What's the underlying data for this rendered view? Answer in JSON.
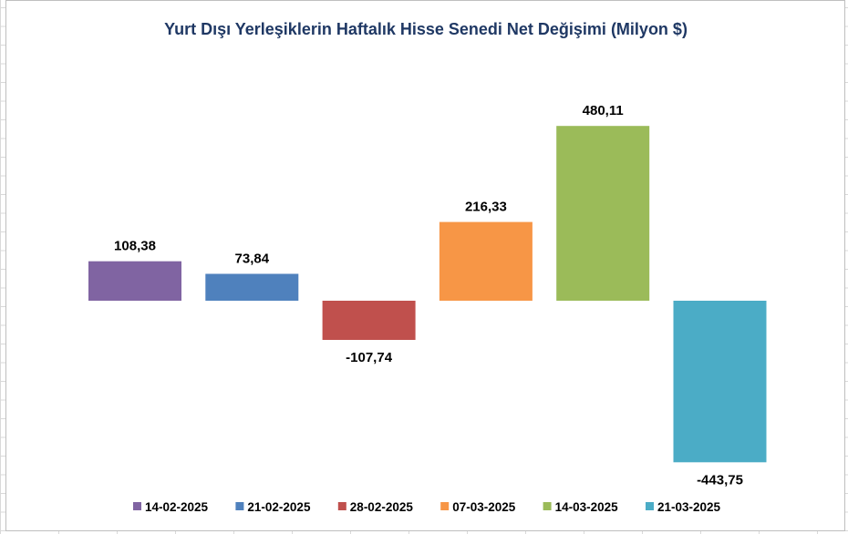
{
  "chart_data": {
    "type": "bar",
    "title": "Yurt Dışı Yerleşiklerin Haftalık Hisse Senedi Net Değişimi (Milyon $)",
    "xlabel": "",
    "ylabel": "",
    "ylim": [
      -470,
      560
    ],
    "grid": false,
    "legend_position": "bottom",
    "series": [
      {
        "name": "14-02-2025",
        "value": 108.38,
        "label": "108,38",
        "color": "#8064a2"
      },
      {
        "name": "21-02-2025",
        "value": 73.84,
        "label": "73,84",
        "color": "#4f81bd"
      },
      {
        "name": "28-02-2025",
        "value": -107.74,
        "label": "-107,74",
        "color": "#c0504d"
      },
      {
        "name": "07-03-2025",
        "value": 216.33,
        "label": "216,33",
        "color": "#f79646"
      },
      {
        "name": "14-03-2025",
        "value": 480.11,
        "label": "480,11",
        "color": "#9bbb59"
      },
      {
        "name": "21-03-2025",
        "value": -443.75,
        "label": "-443,75",
        "color": "#4bacc6"
      }
    ]
  },
  "colors": {
    "title": "#1f3864",
    "labels": "#000000"
  }
}
